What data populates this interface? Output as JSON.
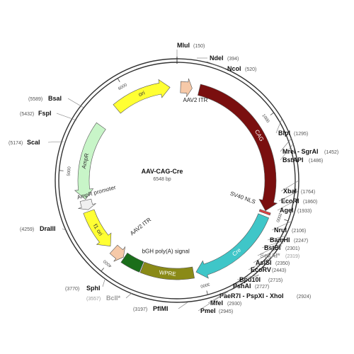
{
  "plasmid": {
    "name": "AAV-CAG-Cre",
    "size_label": "6548 bp",
    "length": 6548
  },
  "ticks": [
    {
      "pos": 1000,
      "label": "1000"
    },
    {
      "pos": 2000,
      "label": "2000"
    },
    {
      "pos": 3000,
      "label": "3000"
    },
    {
      "pos": 4000,
      "label": "4000"
    },
    {
      "pos": 5000,
      "label": "5000"
    },
    {
      "pos": 6000,
      "label": "6000"
    }
  ],
  "features": [
    {
      "key": "aav2-itr-right",
      "label": "AAV2 ITR",
      "start": 40,
      "end": 170,
      "color": "#f6c9a8",
      "label_color": "#222222",
      "direction": 1,
      "label_mode": "outside-angle"
    },
    {
      "key": "cag",
      "label": "CAG",
      "start": 250,
      "end": 1980,
      "color": "#7a0f0f",
      "label_color": "#ffffff",
      "direction": 1,
      "label_mode": "inside"
    },
    {
      "key": "sv40-nls",
      "label": "SV40 NLS",
      "start": 1985,
      "end": 2010,
      "color": "#e04040",
      "label_color": "#222222",
      "direction": 0,
      "label_mode": "inner-radial"
    },
    {
      "key": "cre",
      "label": "Cre",
      "start": 2040,
      "end": 3060,
      "color": "#3fc6c8",
      "label_color": "#ffffff",
      "direction": 1,
      "label_mode": "inside"
    },
    {
      "key": "wpre",
      "label": "WPRE",
      "start": 3090,
      "end": 3670,
      "color": "#8a8a17",
      "label_color": "#ffffff",
      "direction": 0,
      "label_mode": "inside"
    },
    {
      "key": "bgh-polya",
      "label": "bGH poly(A) signal",
      "start": 3680,
      "end": 3900,
      "color": "#1a6e1a",
      "label_color": "#222222",
      "direction": 0,
      "label_mode": "inner-text"
    },
    {
      "key": "aav2-itr-left",
      "label": "AAV2 ITR",
      "start": 3910,
      "end": 4050,
      "color": "#f6c9a8",
      "label_color": "#222222",
      "direction": -1,
      "label_mode": "inner-text"
    },
    {
      "key": "f1-ori",
      "label": "f1 ori",
      "start": 4100,
      "end": 4560,
      "color": "#ffff33",
      "label_color": "#333333",
      "direction": -1,
      "label_mode": "inside"
    },
    {
      "key": "ampr-promoter",
      "label": "AmpR promoter",
      "start": 4580,
      "end": 4690,
      "color": "#f0f0f0",
      "label_color": "#333333",
      "direction": -1,
      "label_mode": "inside-long"
    },
    {
      "key": "ampr",
      "label": "AmpR",
      "start": 4700,
      "end": 5560,
      "color": "#c8f5c8",
      "label_color": "#333333",
      "direction": -1,
      "label_mode": "inside"
    },
    {
      "key": "ori",
      "label": "ori",
      "start": 5820,
      "end": 6470,
      "color": "#ffff33",
      "label_color": "#333333",
      "direction": 1,
      "label_mode": "inside"
    }
  ],
  "sites": [
    {
      "name": "MluI",
      "position": "(150)",
      "side": "top",
      "dim": false
    },
    {
      "name": "NdeI",
      "position": "(394)",
      "side": "right",
      "dim": false
    },
    {
      "name": "NcoI",
      "position": "(520)",
      "side": "right",
      "dim": false
    },
    {
      "name": "BlpI",
      "position": "(1295)",
      "side": "right",
      "dim": false
    },
    {
      "name": "MreI - SgrAI",
      "position": "(1452)",
      "side": "right",
      "dim": false
    },
    {
      "name": "BstAPI",
      "position": "(1486)",
      "side": "right",
      "dim": false
    },
    {
      "name": "XbaI",
      "position": "(1764)",
      "side": "right",
      "dim": false
    },
    {
      "name": "EcoRI",
      "position": "(1860)",
      "side": "right",
      "dim": false
    },
    {
      "name": "AgeI",
      "position": "(1933)",
      "side": "right",
      "dim": false
    },
    {
      "name": "NruI",
      "position": "(2106)",
      "side": "right",
      "dim": false
    },
    {
      "name": "BamHI",
      "position": "(2247)",
      "side": "right",
      "dim": false
    },
    {
      "name": "BstBI",
      "position": "(2301)",
      "side": "right",
      "dim": false
    },
    {
      "name": "SexAI*",
      "position": "(2319)",
      "side": "right",
      "dim": true
    },
    {
      "name": "AsiSI",
      "position": "(2350)",
      "side": "right",
      "dim": false
    },
    {
      "name": "EcoRV",
      "position": "(2443)",
      "side": "right",
      "dim": false
    },
    {
      "name": "Bpu10I",
      "position": "(2715)",
      "side": "right",
      "dim": false
    },
    {
      "name": "PshAI",
      "position": "(2727)",
      "side": "right",
      "dim": false
    },
    {
      "name": "PaeR7I - PspXI - XhoI",
      "position": "(2924)",
      "side": "right",
      "dim": false
    },
    {
      "name": "MfeI",
      "position": "(2930)",
      "side": "right",
      "dim": false
    },
    {
      "name": "PmeI",
      "position": "(2945)",
      "side": "right",
      "dim": false
    },
    {
      "name": "PflMI",
      "position": "(3197)",
      "side": "left",
      "dim": false
    },
    {
      "name": "BclI*",
      "position": "(3557)",
      "side": "left",
      "dim": true
    },
    {
      "name": "SphI",
      "position": "(3770)",
      "side": "left",
      "dim": false
    },
    {
      "name": "DraIII",
      "position": "(4259)",
      "side": "left",
      "dim": false
    },
    {
      "name": "ScaI",
      "position": "(5174)",
      "side": "left",
      "dim": false
    },
    {
      "name": "FspI",
      "position": "(5432)",
      "side": "left",
      "dim": false
    },
    {
      "name": "BsaI",
      "position": "(5589)",
      "side": "left",
      "dim": false
    }
  ]
}
